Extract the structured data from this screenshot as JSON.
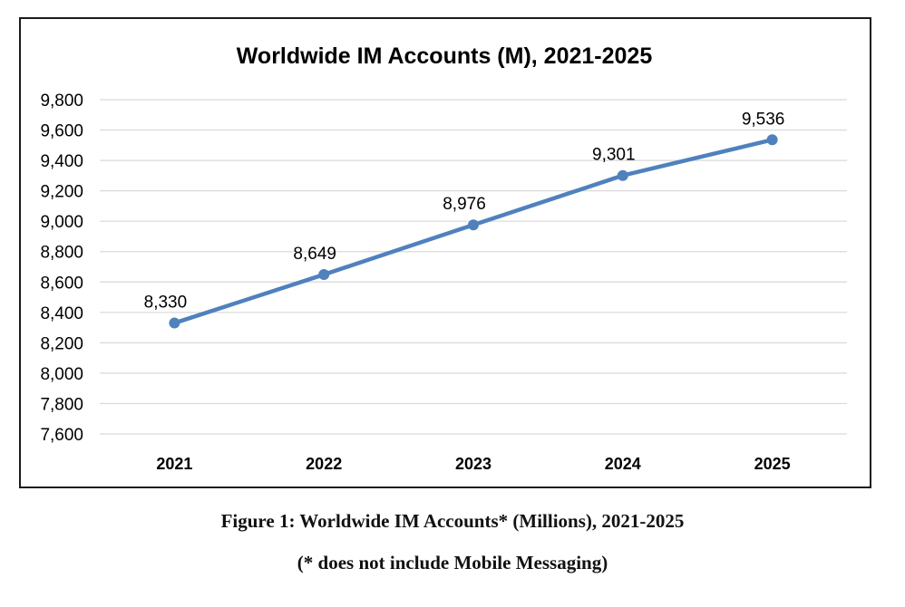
{
  "chart_data": {
    "type": "line",
    "title": "Worldwide IM Accounts (M), 2021-2025",
    "xlabel": "",
    "ylabel": "",
    "categories": [
      "2021",
      "2022",
      "2023",
      "2024",
      "2025"
    ],
    "series": [
      {
        "values": [
          8330,
          8649,
          8976,
          9301,
          9536
        ],
        "labels": [
          "8,330",
          "8,649",
          "8,976",
          "9,301",
          "9,536"
        ],
        "color": "#4f81bd"
      }
    ],
    "ylim": [
      7600,
      9800
    ],
    "yticks": [
      {
        "value": 7600,
        "label": "7,600"
      },
      {
        "value": 7800,
        "label": "7,800"
      },
      {
        "value": 8000,
        "label": "8,000"
      },
      {
        "value": 8200,
        "label": "8,200"
      },
      {
        "value": 8400,
        "label": "8,400"
      },
      {
        "value": 8600,
        "label": "8,600"
      },
      {
        "value": 8800,
        "label": "8,800"
      },
      {
        "value": 9000,
        "label": "9,000"
      },
      {
        "value": 9200,
        "label": "9,200"
      },
      {
        "value": 9400,
        "label": "9,400"
      },
      {
        "value": 9600,
        "label": "9,600"
      },
      {
        "value": 9800,
        "label": "9,800"
      }
    ],
    "grid": true,
    "legend": "none"
  },
  "caption": {
    "line1": "Figure 1: Worldwide IM Accounts* (Millions), 2021-2025",
    "line2": "(* does not include Mobile Messaging)"
  }
}
